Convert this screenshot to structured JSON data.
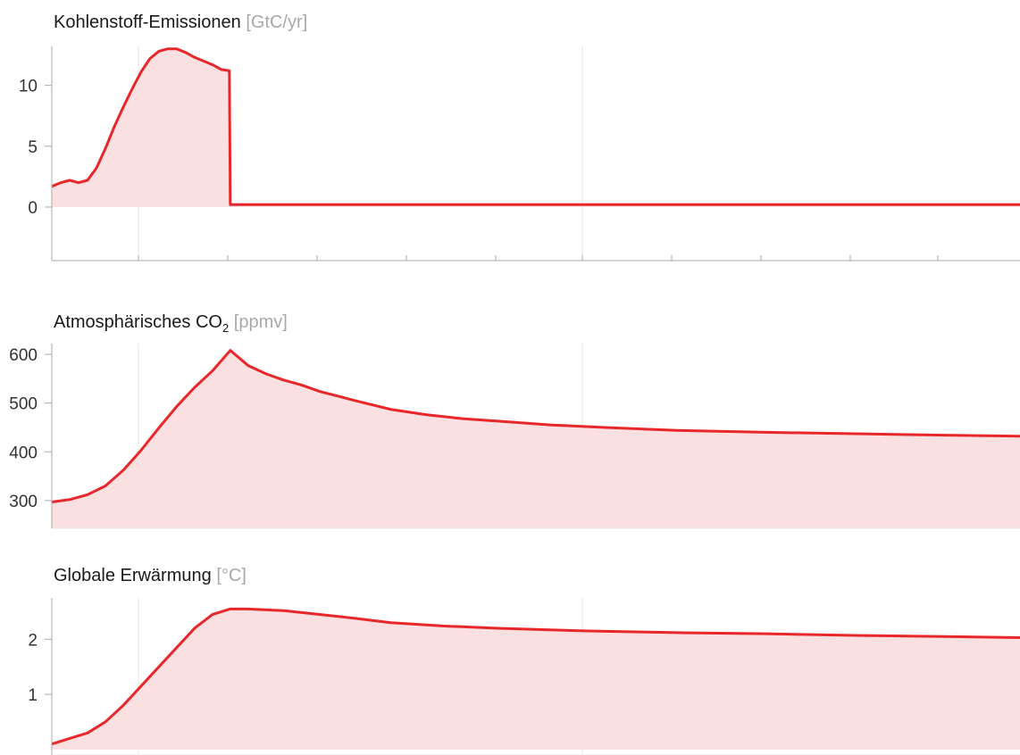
{
  "colors": {
    "line": "#e8272b",
    "fill": "#fbe0e1",
    "grid": "#e6e6e6",
    "axis": "#aaaaaa",
    "unit": "#a8a8a8"
  },
  "chart_data": [
    {
      "type": "area",
      "title": "Kohlenstoff-Emissionen",
      "unit": "[GtC/yr]",
      "xlim": [
        0,
        1085
      ],
      "ylim": [
        -4.4,
        13.2
      ],
      "yticks": [
        0,
        5,
        10
      ],
      "x": [
        0,
        10,
        20,
        30,
        40,
        50,
        60,
        70,
        80,
        90,
        100,
        110,
        120,
        130,
        140,
        150,
        160,
        170,
        180,
        190,
        199,
        200,
        210,
        300,
        400,
        500,
        600,
        700,
        800,
        900,
        1000,
        1085
      ],
      "values": [
        1.7,
        2.0,
        2.2,
        2.0,
        2.2,
        3.2,
        4.8,
        6.6,
        8.2,
        9.7,
        11.1,
        12.2,
        12.8,
        13.0,
        13.0,
        12.7,
        12.3,
        12.0,
        11.7,
        11.3,
        11.2,
        0.2,
        0.2,
        0.2,
        0.2,
        0.2,
        0.2,
        0.2,
        0.2,
        0.2,
        0.2,
        0.2
      ]
    },
    {
      "type": "area",
      "title": "Atmosphärisches CO",
      "title_subscript": "2",
      "unit": "[ppmv]",
      "xlim": [
        0,
        1085
      ],
      "ylim": [
        243,
        622
      ],
      "yticks": [
        300,
        400,
        500,
        600
      ],
      "ytick_labels": [
        "300",
        "400",
        "500",
        "600"
      ],
      "x": [
        0,
        20,
        40,
        60,
        80,
        100,
        120,
        140,
        160,
        180,
        200,
        220,
        240,
        260,
        280,
        300,
        340,
        380,
        420,
        460,
        500,
        560,
        620,
        700,
        800,
        900,
        1000,
        1085
      ],
      "values": [
        297,
        302,
        312,
        330,
        362,
        403,
        449,
        493,
        532,
        566,
        608,
        577,
        560,
        547,
        537,
        524,
        505,
        487,
        476,
        468,
        463,
        455,
        450,
        444,
        440,
        437,
        434,
        432
      ]
    },
    {
      "type": "area",
      "title": "Globale Erwärmung",
      "unit": "[°C]",
      "xlim": [
        0,
        1085
      ],
      "ylim": [
        -0.1,
        2.75
      ],
      "yticks": [
        1,
        2
      ],
      "x": [
        0,
        20,
        40,
        60,
        80,
        100,
        120,
        140,
        160,
        180,
        200,
        220,
        260,
        300,
        340,
        380,
        440,
        500,
        600,
        700,
        800,
        900,
        1000,
        1085
      ],
      "values": [
        0.1,
        0.2,
        0.3,
        0.5,
        0.8,
        1.15,
        1.5,
        1.85,
        2.2,
        2.45,
        2.55,
        2.55,
        2.52,
        2.45,
        2.38,
        2.3,
        2.24,
        2.2,
        2.15,
        2.12,
        2.1,
        2.07,
        2.05,
        2.03
      ]
    }
  ]
}
